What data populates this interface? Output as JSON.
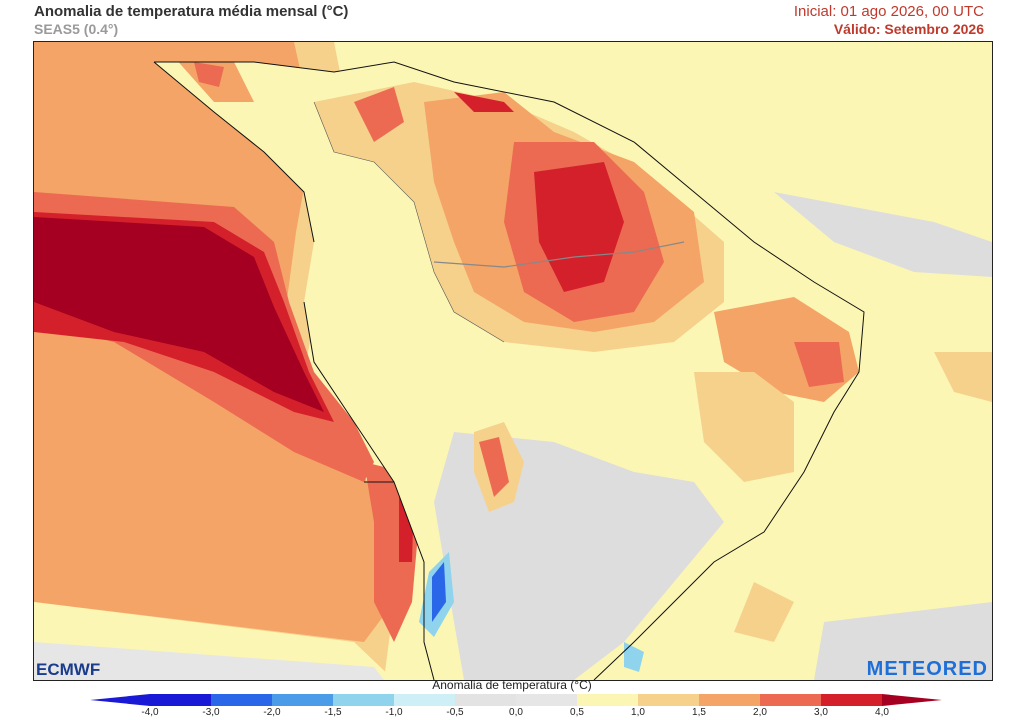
{
  "header": {
    "title": "Anomalia de temperatura média mensal (°C)",
    "subtitle": "SEAS5 (0.4°)",
    "initial": "Inicial: 01 ago 2026, 00 UTC",
    "valid": "Válido: Setembro 2026"
  },
  "logos": {
    "left": "ECMWF",
    "right": "METEORED"
  },
  "colorbar": {
    "title": "Anomalia de temperatura (°C)",
    "ticks": [
      "-4,0",
      "-3,0",
      "-2,0",
      "-1,5",
      "-1,0",
      "-0,5",
      "0,0",
      "0,5",
      "1,0",
      "1,5",
      "2,0",
      "3,0",
      "4,0"
    ],
    "colors": [
      "#1a1ad6",
      "#2a66e8",
      "#4a9ce8",
      "#8fd3ec",
      "#cdeff5",
      "#e3e3e3",
      "#e6e6e6",
      "#fcf6b4",
      "#f6d18c",
      "#f3a466",
      "#ec6a52",
      "#d4202a"
    ]
  },
  "map": {
    "palette": {
      "gray": "#dddddd",
      "yellow": "#fcf6b4",
      "light_orange": "#f6d18c",
      "orange": "#f3a466",
      "red": "#ec6a52",
      "dark_red": "#d4202a",
      "darker_red": "#a50021",
      "blue": "#2a66e8",
      "light_blue": "#8fd3ec"
    }
  }
}
